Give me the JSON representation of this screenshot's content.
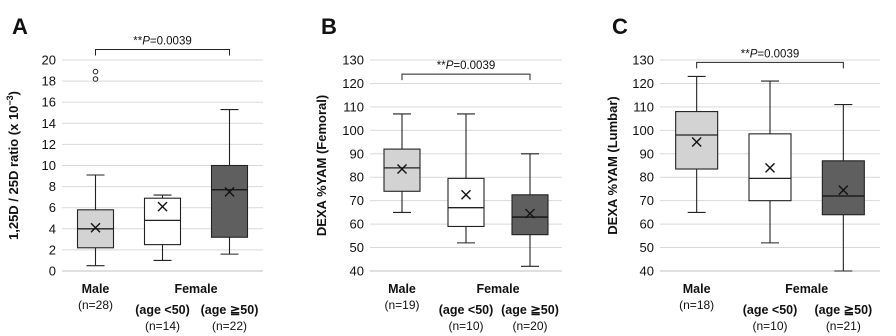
{
  "chart_data": [
    {
      "type": "box",
      "panel_label": "A",
      "ylabel": "1,25D / 25D ratio (x 10",
      "ylabel_sup": "−3",
      "ylabel_end": ")",
      "ylim": [
        0,
        20
      ],
      "yticks": [
        "0",
        "2",
        "4",
        "6",
        "8",
        "10",
        "12",
        "14",
        "16",
        "18",
        "20"
      ],
      "groups": [
        {
          "name": "Male",
          "n": "(n=28)",
          "fill": "#d3d3d3",
          "whisker_low": 0.5,
          "q1": 2.2,
          "median": 4.0,
          "q3": 5.8,
          "whisker_high": 9.1,
          "mean": 4.1,
          "outliers": [
            18.2,
            18.9
          ]
        },
        {
          "name": "(age <50)",
          "n": "(n=14)",
          "fill": "#ffffff",
          "whisker_low": 1.0,
          "q1": 2.5,
          "median": 4.8,
          "q3": 6.9,
          "whisker_high": 7.2,
          "mean": 6.1,
          "outliers": []
        },
        {
          "name": "(age ≧50)",
          "n": "(n=22)",
          "fill": "#5f5f5f",
          "whisker_low": 1.6,
          "q1": 3.2,
          "median": 7.7,
          "q3": 10.0,
          "whisker_high": 15.3,
          "mean": 7.5,
          "outliers": []
        }
      ],
      "female_label": "Female",
      "significance": {
        "prefix": "**",
        "p": "P",
        "value": "=0.0039",
        "from": 0,
        "to": 2,
        "at": 21.0
      }
    },
    {
      "type": "box",
      "panel_label": "B",
      "ylabel": "DEXA %YAM (Femoral)",
      "ylim": [
        40,
        130
      ],
      "yticks": [
        "40",
        "50",
        "60",
        "70",
        "80",
        "90",
        "100",
        "110",
        "120",
        "130"
      ],
      "groups": [
        {
          "name": "Male",
          "n": "(n=19)",
          "fill": "#d3d3d3",
          "whisker_low": 65,
          "q1": 74,
          "median": 84,
          "q3": 92,
          "whisker_high": 107,
          "mean": 83.5,
          "outliers": []
        },
        {
          "name": "(age <50)",
          "n": "(n=10)",
          "fill": "#ffffff",
          "whisker_low": 52,
          "q1": 59,
          "median": 67,
          "q3": 79.5,
          "whisker_high": 107,
          "mean": 72.5,
          "outliers": []
        },
        {
          "name": "(age ≧50)",
          "n": "(n=20)",
          "fill": "#5f5f5f",
          "whisker_low": 42,
          "q1": 55.5,
          "median": 63,
          "q3": 72.5,
          "whisker_high": 90,
          "mean": 64.5,
          "outliers": []
        }
      ],
      "female_label": "Female",
      "significance": {
        "prefix": "**",
        "p": "P",
        "value": "=0.0039",
        "from": 0,
        "to": 2,
        "at": 124
      }
    },
    {
      "type": "box",
      "panel_label": "C",
      "ylabel": "DEXA %YAM (Lumbar)",
      "ylim": [
        40,
        130
      ],
      "yticks": [
        "40",
        "50",
        "60",
        "70",
        "80",
        "90",
        "100",
        "110",
        "120",
        "130"
      ],
      "groups": [
        {
          "name": "Male",
          "n": "(n=18)",
          "fill": "#d3d3d3",
          "whisker_low": 65,
          "q1": 83.5,
          "median": 98,
          "q3": 108,
          "whisker_high": 123,
          "mean": 95,
          "outliers": []
        },
        {
          "name": "(age <50)",
          "n": "(n=10)",
          "fill": "#ffffff",
          "whisker_low": 52,
          "q1": 70,
          "median": 79.5,
          "q3": 98.5,
          "whisker_high": 121,
          "mean": 84,
          "outliers": []
        },
        {
          "name": "(age ≧50)",
          "n": "(n=21)",
          "fill": "#5f5f5f",
          "whisker_low": 40,
          "q1": 64,
          "median": 72,
          "q3": 87,
          "whisker_high": 111,
          "mean": 74.5,
          "outliers": []
        }
      ],
      "female_label": "Female",
      "significance": {
        "prefix": "**",
        "p": "P",
        "value": "=0.0039",
        "from": 0,
        "to": 2,
        "at": 129
      }
    }
  ]
}
